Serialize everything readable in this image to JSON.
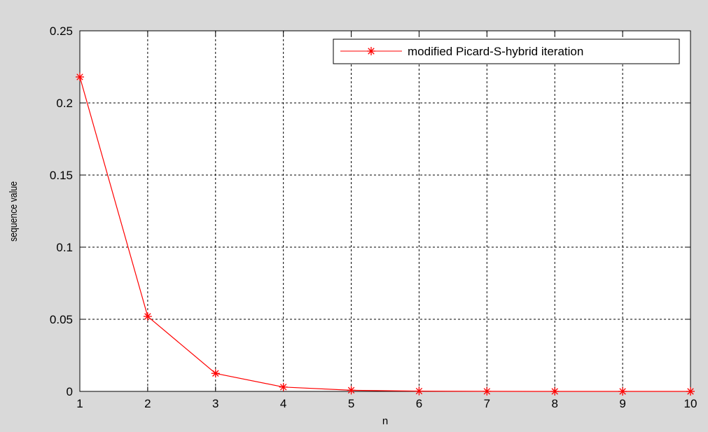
{
  "chart_data": {
    "type": "line",
    "xlabel": "n",
    "ylabel": "sequence value",
    "xlim": [
      1,
      10
    ],
    "ylim": [
      0,
      0.25
    ],
    "xticks": [
      "1",
      "2",
      "3",
      "4",
      "5",
      "6",
      "7",
      "8",
      "9",
      "10"
    ],
    "yticks": [
      "0",
      "0.05",
      "0.1",
      "0.15",
      "0.2",
      "0.25"
    ],
    "grid": true,
    "legend_position": "top-right",
    "series": [
      {
        "name": "modified Picard-S-hybrid iteration",
        "color": "#ff0000",
        "marker": "asterisk",
        "x": [
          1,
          2,
          3,
          4,
          5,
          6,
          7,
          8,
          9,
          10
        ],
        "y": [
          0.218,
          0.052,
          0.0125,
          0.003,
          0.0008,
          0.0002,
          5e-05,
          1e-05,
          3e-06,
          1e-06
        ]
      }
    ]
  }
}
